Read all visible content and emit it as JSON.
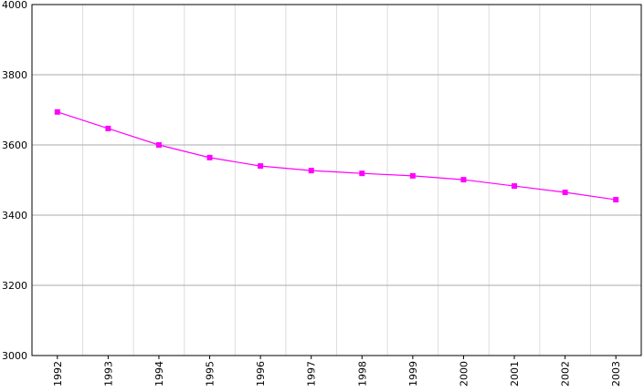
{
  "chart_data": {
    "type": "line",
    "categories": [
      "1992",
      "1993",
      "1994",
      "1995",
      "1996",
      "1997",
      "1998",
      "1999",
      "2000",
      "2001",
      "2002",
      "2003"
    ],
    "values": [
      3694,
      3647,
      3600,
      3564,
      3540,
      3527,
      3519,
      3512,
      3501,
      3483,
      3465,
      3444
    ],
    "color": "#ff00ff",
    "ylim": [
      3000,
      4000
    ],
    "yticks": [
      3000,
      3200,
      3400,
      3600,
      3800,
      4000
    ],
    "grid": true
  }
}
